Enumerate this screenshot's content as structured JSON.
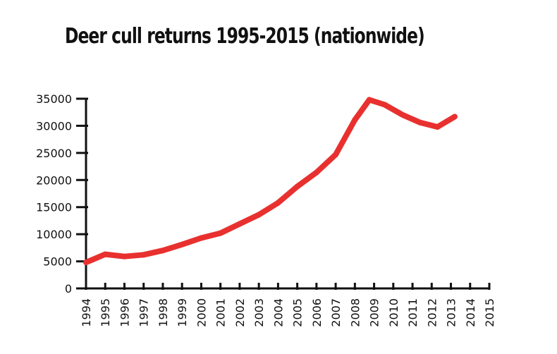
{
  "chart_data": {
    "type": "line",
    "title": "Deer cull returns 1995-2015 (nationwide)",
    "xlabel": "",
    "ylabel": "",
    "x": [
      "1994",
      "1995",
      "1996",
      "1997",
      "1998",
      "1999",
      "2000",
      "2001",
      "2002",
      "2003",
      "2004",
      "2005",
      "2006",
      "2007",
      "2008",
      "2009",
      "2010",
      "2011",
      "2012",
      "2013",
      "2014",
      "2015"
    ],
    "yticks": [
      0,
      5000,
      10000,
      15000,
      20000,
      25000,
      30000,
      35000
    ],
    "ylim": [
      0,
      35000
    ],
    "series": [
      {
        "color": "#e8312f",
        "points": [
          {
            "x": 1994.0,
            "y": 4800
          },
          {
            "x": 1995.0,
            "y": 6300
          },
          {
            "x": 1996.0,
            "y": 5900
          },
          {
            "x": 1997.0,
            "y": 6200
          },
          {
            "x": 1998.0,
            "y": 7000
          },
          {
            "x": 1999.0,
            "y": 8100
          },
          {
            "x": 2000.0,
            "y": 9300
          },
          {
            "x": 2001.0,
            "y": 10200
          },
          {
            "x": 2002.0,
            "y": 11900
          },
          {
            "x": 2003.0,
            "y": 13600
          },
          {
            "x": 2004.0,
            "y": 15800
          },
          {
            "x": 2005.0,
            "y": 18800
          },
          {
            "x": 2006.0,
            "y": 21400
          },
          {
            "x": 2007.0,
            "y": 24700
          },
          {
            "x": 2008.0,
            "y": 31100
          },
          {
            "x": 2008.75,
            "y": 34800
          },
          {
            "x": 2009.55,
            "y": 33900
          },
          {
            "x": 2010.5,
            "y": 32000
          },
          {
            "x": 2011.4,
            "y": 30600
          },
          {
            "x": 2012.3,
            "y": 29800
          },
          {
            "x": 2013.2,
            "y": 31700
          }
        ]
      }
    ],
    "grid": false,
    "legend": "none"
  }
}
